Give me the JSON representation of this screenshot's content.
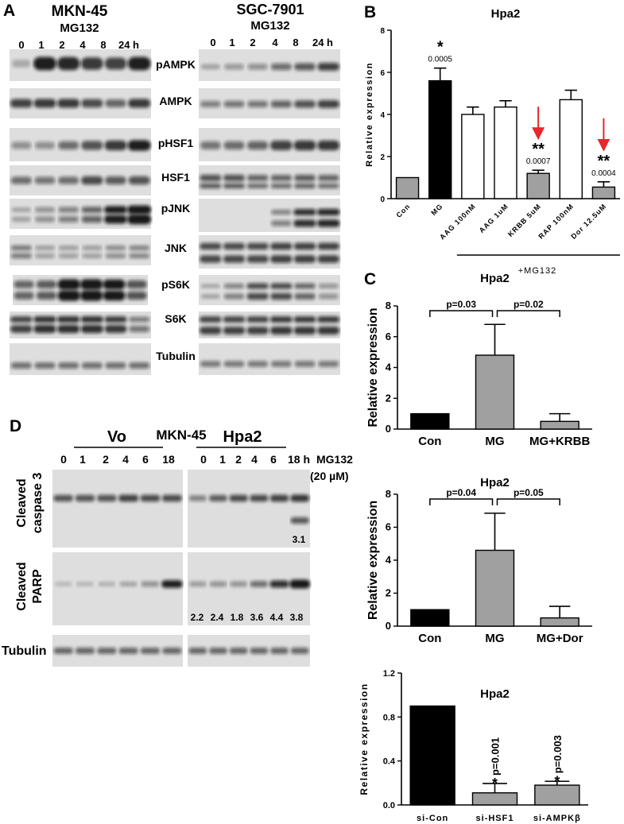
{
  "panels": {
    "A": {
      "letter": "A",
      "left": {
        "cell_line": "MKN-45",
        "treatment": "MG132",
        "timepoints": [
          "0",
          "1",
          "2",
          "4",
          "8",
          "24 h"
        ]
      },
      "right": {
        "cell_line": "SGC-7901",
        "treatment": "MG132",
        "timepoints": [
          "0",
          "1",
          "2",
          "4",
          "8",
          "24 h"
        ]
      },
      "proteins": [
        "pAMPK",
        "AMPK",
        "pHSF1",
        "HSF1",
        "pJNK",
        "JNK",
        "pS6K",
        "S6K",
        "Tubulin"
      ]
    },
    "D": {
      "letter": "D",
      "cell_line": "MKN-45",
      "group_vo": "Vo",
      "group_hpa2": "Hpa2",
      "vo_timepoints": [
        "0",
        "1",
        "2",
        "4",
        "6",
        "18"
      ],
      "hpa2_timepoints": [
        "0",
        "1",
        "2",
        "4",
        "6",
        "18 h"
      ],
      "treatment": "MG132",
      "dose": "(20 µM)",
      "rows": [
        "Cleaved caspase 3",
        "Cleaved PARP",
        "Tubulin"
      ],
      "caspase_value": "3.1",
      "parp_values": [
        "2.2",
        "2.4",
        "1.8",
        "3.6",
        "4.4",
        "3.8"
      ]
    },
    "B": {
      "letter": "B",
      "bracket_label": "+MG132"
    },
    "C": {
      "letter": "C"
    }
  },
  "chart_data": [
    {
      "panel": "B",
      "type": "bar",
      "title": "Hpa2",
      "ylabel": "Relative expression",
      "ylim": [
        0,
        8
      ],
      "yticks": [
        "0",
        "2",
        "4",
        "6",
        "8"
      ],
      "categories": [
        "Con",
        "MG",
        "AAG 100nM",
        "AAG 1uM",
        "KRBB 5uM",
        "RAP 100nM",
        "Dor 12.5uM"
      ],
      "values": [
        1.0,
        5.6,
        4.0,
        4.35,
        1.2,
        4.7,
        0.55
      ],
      "errors": [
        0.0,
        0.6,
        0.35,
        0.3,
        0.15,
        0.45,
        0.25
      ],
      "fills": [
        "#a0a0a0",
        "#000000",
        "#ffffff",
        "#ffffff",
        "#a0a0a0",
        "#ffffff",
        "#a0a0a0"
      ],
      "stars": [
        "",
        "*",
        "",
        "",
        "**",
        "",
        "**"
      ],
      "pvalues": [
        "",
        "0.0005",
        "",
        "",
        "0.0007",
        "",
        "0.0004"
      ],
      "arrows_on": [
        "KRBB 5uM",
        "Dor 12.5uM"
      ],
      "arrow_color": "#e8262b"
    },
    {
      "panel": "C1",
      "type": "bar",
      "title": "Hpa2",
      "ylabel": "Relative expression",
      "ylim": [
        0,
        8
      ],
      "yticks": [
        "0",
        "2",
        "4",
        "6",
        "8"
      ],
      "categories": [
        "Con",
        "MG",
        "MG+KRBB"
      ],
      "values": [
        1.0,
        4.8,
        0.5
      ],
      "errors": [
        0.0,
        2.0,
        0.5
      ],
      "fills": [
        "#000000",
        "#a0a0a0",
        "#a0a0a0"
      ],
      "comparisons": [
        "p=0.03",
        "p=0.02"
      ]
    },
    {
      "panel": "C2",
      "type": "bar",
      "title": "Hpa2",
      "ylabel": "Relative expression",
      "ylim": [
        0,
        8
      ],
      "yticks": [
        "0",
        "2",
        "4",
        "6",
        "8"
      ],
      "categories": [
        "Con",
        "MG",
        "MG+Dor"
      ],
      "values": [
        1.0,
        4.6,
        0.5
      ],
      "errors": [
        0.0,
        2.25,
        0.7
      ],
      "fills": [
        "#000000",
        "#a0a0a0",
        "#a0a0a0"
      ],
      "comparisons": [
        "p=0.04",
        "p=0.05"
      ]
    },
    {
      "panel": "C3",
      "type": "bar",
      "title": "Hpa2",
      "ylabel": "Relative expression",
      "ylim": [
        0,
        1.2
      ],
      "yticks": [
        "0.0",
        "0.4",
        "0.8",
        "1.2"
      ],
      "categories": [
        "si-Con",
        "si-HSF1",
        "si-AMPKβ"
      ],
      "values": [
        0.9,
        0.11,
        0.18
      ],
      "errors": [
        0.0,
        0.085,
        0.035
      ],
      "fills": [
        "#000000",
        "#a0a0a0",
        "#a0a0a0"
      ],
      "stars": [
        "",
        "*",
        "*"
      ],
      "pvalues": [
        "",
        "p=0.001",
        "p=0.003"
      ]
    }
  ]
}
